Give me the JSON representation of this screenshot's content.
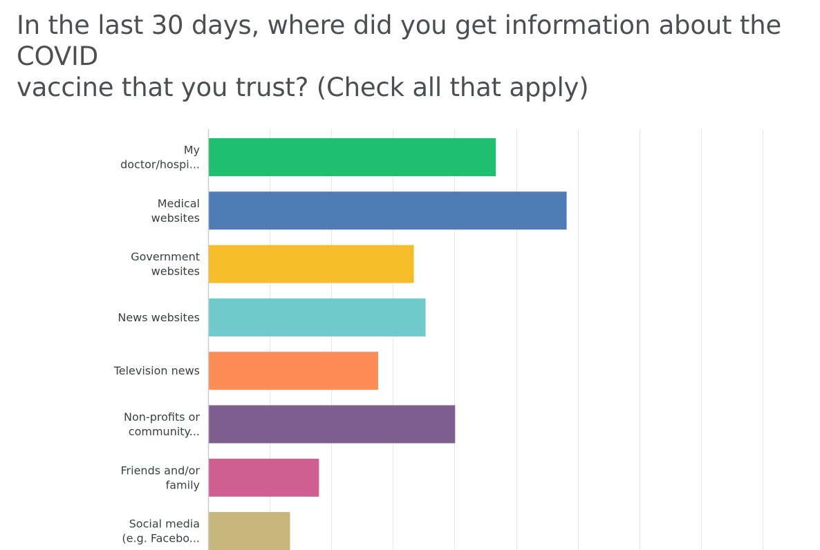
{
  "question": {
    "title_line1": "In the last 30 days, where did you get information about the COVID",
    "title_line2": "vaccine that you trust? (Check all that apply)"
  },
  "chart_data": {
    "type": "bar",
    "orientation": "horizontal",
    "title": "",
    "xlabel": "",
    "ylabel": "",
    "xlim": [
      0,
      100
    ],
    "grid": true,
    "legend": "none",
    "categories": [
      [
        "My",
        "doctor/hospi..."
      ],
      [
        "Medical",
        "websites"
      ],
      [
        "Government",
        "websites"
      ],
      [
        "News websites"
      ],
      [
        "Television news"
      ],
      [
        "Non-profits or",
        "community..."
      ],
      [
        "Friends and/or",
        "family"
      ],
      [
        "Social media",
        "(e.g. Facebo..."
      ]
    ],
    "values": [
      46.7,
      58.2,
      33.4,
      35.3,
      27.6,
      40.1,
      18.0,
      13.3
    ],
    "colors": [
      "#1fbf72",
      "#507cb6",
      "#f6bd2b",
      "#70c9cb",
      "#fd8c56",
      "#7e5f8f",
      "#d05f91",
      "#c7b77d"
    ]
  }
}
